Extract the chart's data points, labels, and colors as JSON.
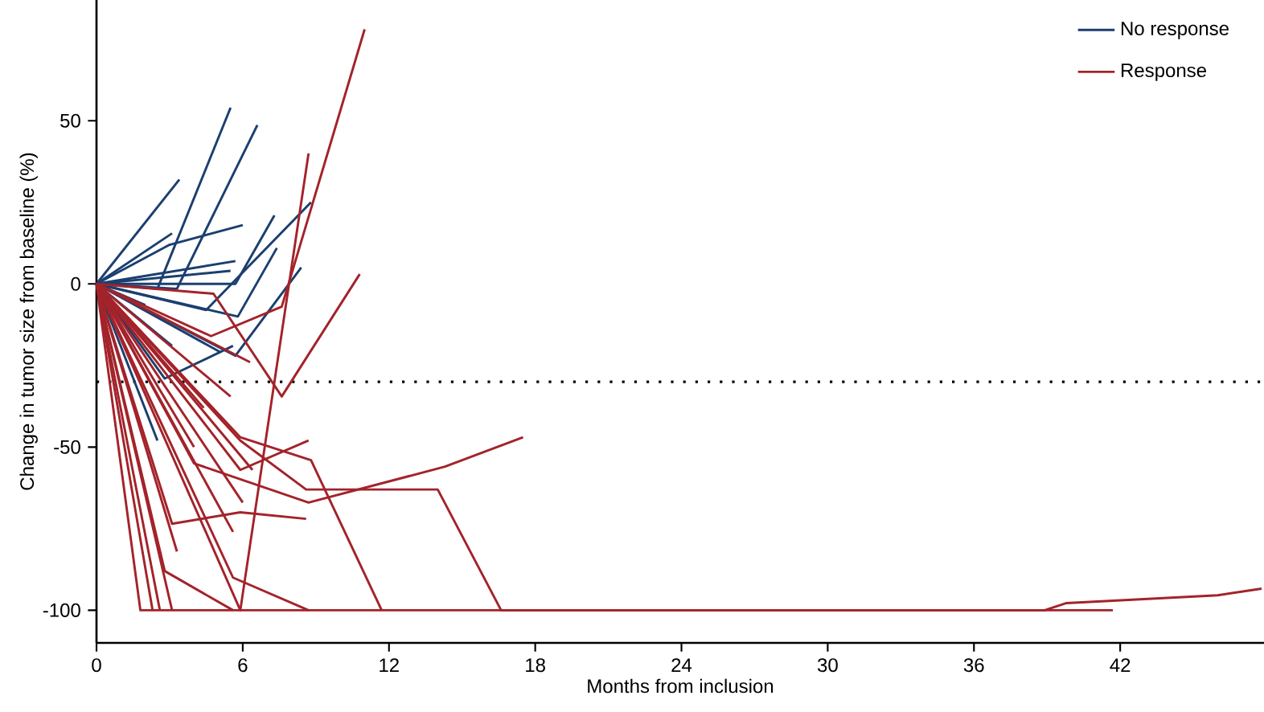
{
  "chart_data": {
    "type": "line",
    "xlabel": "Months from inclusion",
    "ylabel": "Change in tumor size from baseline (%)",
    "xlim": [
      0,
      47.9
    ],
    "ylim": [
      -110,
      87
    ],
    "xticks": [
      0,
      6,
      12,
      18,
      24,
      30,
      36,
      42
    ],
    "yticks": [
      -100,
      -50,
      0,
      50
    ],
    "grid": false,
    "legend": "top right",
    "marker": "none",
    "line_style": "solid",
    "ref_lines": [
      {
        "axis": "y",
        "value": -30,
        "line_style": "dotted",
        "color": "#000000"
      }
    ],
    "series": [
      {
        "name": "No response",
        "color": "#1b3f6f",
        "x": [
          0,
          3.4
        ],
        "values": [
          0,
          32
        ]
      },
      {
        "color": "#1b3f6f",
        "x": [
          0,
          2.5,
          5.5
        ],
        "values": [
          0,
          -1.5,
          54
        ]
      },
      {
        "color": "#1b3f6f",
        "x": [
          0,
          3.3,
          6.6
        ],
        "values": [
          0,
          -1.5,
          48.7
        ]
      },
      {
        "color": "#1b3f6f",
        "x": [
          0,
          3.0,
          6.0
        ],
        "values": [
          0,
          12,
          18
        ]
      },
      {
        "color": "#1b3f6f",
        "x": [
          0,
          3.1
        ],
        "values": [
          0,
          15.5
        ]
      },
      {
        "color": "#1b3f6f",
        "x": [
          0,
          5.7,
          7.3
        ],
        "values": [
          0,
          0,
          21
        ]
      },
      {
        "color": "#1b3f6f",
        "x": [
          0,
          4.5,
          8.8
        ],
        "values": [
          0,
          -8,
          25
        ]
      },
      {
        "color": "#1b3f6f",
        "x": [
          0,
          5.8,
          7.4
        ],
        "values": [
          0,
          -10,
          11
        ]
      },
      {
        "color": "#1b3f6f",
        "x": [
          0,
          5.7,
          8.4
        ],
        "values": [
          0,
          -22,
          5
        ]
      },
      {
        "color": "#1b3f6f",
        "x": [
          0,
          2.8,
          5.6
        ],
        "values": [
          0,
          -29,
          -19
        ]
      },
      {
        "color": "#1b3f6f",
        "x": [
          0,
          5.7
        ],
        "values": [
          0,
          7
        ]
      },
      {
        "color": "#1b3f6f",
        "x": [
          0,
          5.5
        ],
        "values": [
          0,
          4
        ]
      },
      {
        "color": "#1b3f6f",
        "x": [
          0,
          2.5
        ],
        "values": [
          0,
          -48
        ]
      },
      {
        "color": "#1b3f6f",
        "x": [
          0,
          3.1
        ],
        "values": [
          0,
          -19
        ]
      },
      {
        "color": "#1b3f6f",
        "x": [
          0,
          5.1
        ],
        "values": [
          0,
          -21
        ]
      },
      {
        "color": "#1b3f6f",
        "x": [
          0,
          2.0
        ],
        "values": [
          0,
          -6.5
        ]
      },
      {
        "name": "Response",
        "color": "#a3232a",
        "x": [
          0,
          4.7,
          7.6,
          11.0
        ],
        "values": [
          0,
          -16,
          -7,
          78
        ]
      },
      {
        "color": "#a3232a",
        "x": [
          0,
          4.8,
          7.6,
          10.8
        ],
        "values": [
          0,
          -3,
          -34.5,
          3
        ]
      },
      {
        "color": "#a3232a",
        "x": [
          0,
          5.9,
          8.7
        ],
        "values": [
          0,
          -100,
          40
        ]
      },
      {
        "color": "#a3232a",
        "x": [
          0,
          4.0,
          8.7,
          14.3,
          17.5
        ],
        "values": [
          0,
          -55,
          -67,
          -56,
          -47
        ]
      },
      {
        "color": "#a3232a",
        "x": [
          0,
          5.9,
          8.6,
          14.0,
          16.6,
          41.7
        ],
        "values": [
          0,
          -48,
          -63,
          -63,
          -100,
          -100
        ]
      },
      {
        "color": "#a3232a",
        "x": [
          0,
          1.8,
          38.9,
          39.8,
          46,
          47.8
        ],
        "values": [
          0,
          -100,
          -100,
          -97.8,
          -95.4,
          -93.4
        ]
      },
      {
        "color": "#a3232a",
        "x": [
          0,
          5.9,
          8.8,
          11.7
        ],
        "values": [
          0,
          -47,
          -54,
          -100
        ]
      },
      {
        "color": "#a3232a",
        "x": [
          0,
          5.9,
          8.7
        ],
        "values": [
          0,
          -57,
          -48
        ]
      },
      {
        "color": "#a3232a",
        "x": [
          0,
          3.1,
          5.9,
          8.6
        ],
        "values": [
          0,
          -73.5,
          -70,
          -72
        ]
      },
      {
        "color": "#a3232a",
        "x": [
          0,
          2.8,
          5.6
        ],
        "values": [
          0,
          -88,
          -100
        ]
      },
      {
        "color": "#a3232a",
        "x": [
          0,
          5.6,
          8.7
        ],
        "values": [
          0,
          -90,
          -100
        ]
      },
      {
        "color": "#a3232a",
        "x": [
          0,
          2.3
        ],
        "values": [
          0,
          -100
        ]
      },
      {
        "color": "#a3232a",
        "x": [
          0,
          2.6
        ],
        "values": [
          0,
          -100
        ]
      },
      {
        "color": "#a3232a",
        "x": [
          0,
          3.1
        ],
        "values": [
          0,
          -100
        ]
      },
      {
        "color": "#a3232a",
        "x": [
          0,
          3.3
        ],
        "values": [
          0,
          -82
        ]
      },
      {
        "color": "#a3232a",
        "x": [
          0,
          5.6
        ],
        "values": [
          0,
          -76
        ]
      },
      {
        "color": "#a3232a",
        "x": [
          0,
          6.0
        ],
        "values": [
          0,
          -67
        ]
      },
      {
        "color": "#a3232a",
        "x": [
          0,
          6.4
        ],
        "values": [
          0,
          -57
        ]
      },
      {
        "color": "#a3232a",
        "x": [
          0,
          6.3
        ],
        "values": [
          0,
          -24
        ]
      },
      {
        "color": "#a3232a",
        "x": [
          0,
          5.5
        ],
        "values": [
          0,
          -34.5
        ]
      },
      {
        "color": "#a3232a",
        "x": [
          0,
          4.4
        ],
        "values": [
          0,
          -38
        ]
      },
      {
        "color": "#a3232a",
        "x": [
          0,
          4.0
        ],
        "values": [
          0,
          -50
        ]
      }
    ]
  }
}
